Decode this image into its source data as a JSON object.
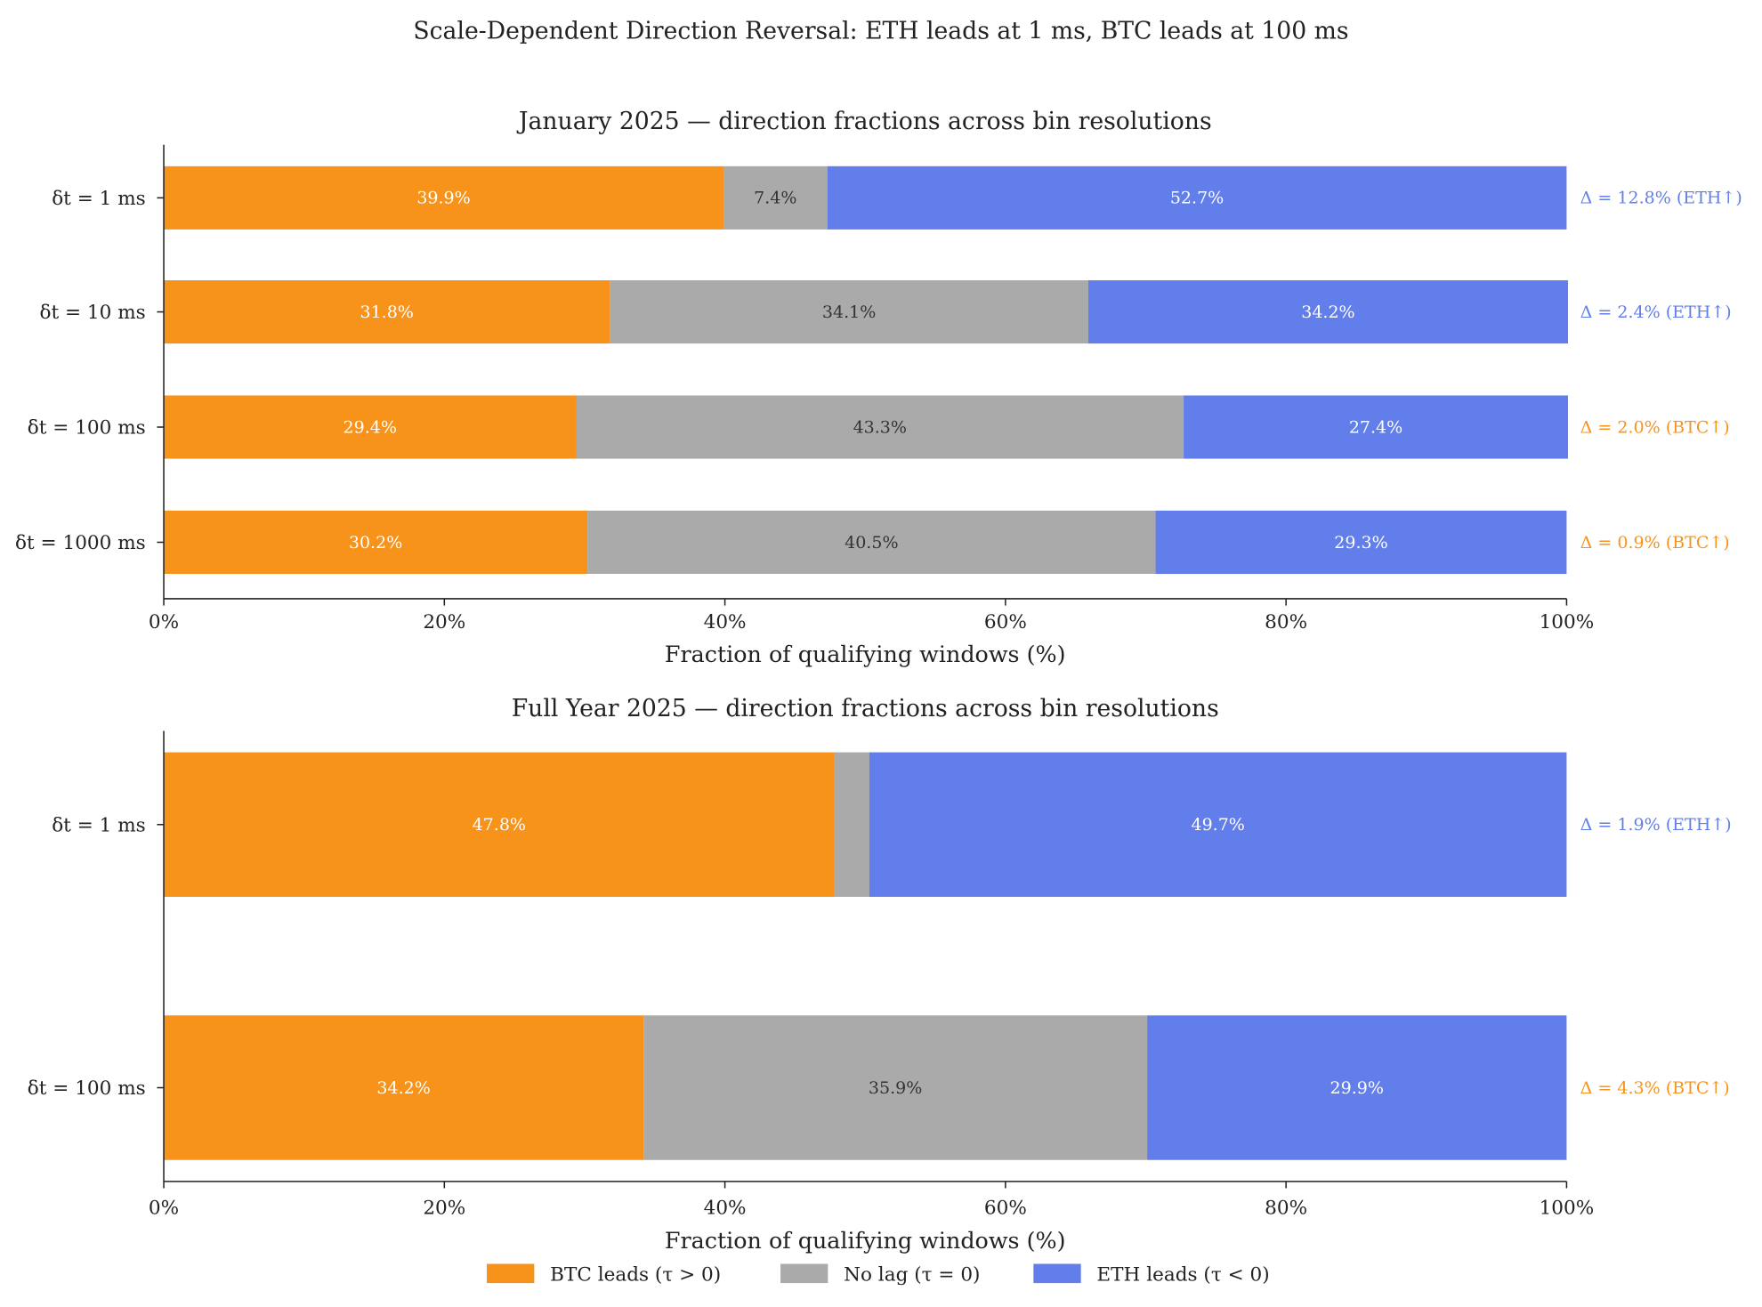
{
  "title": "Scale-Dependent Direction Reversal: ETH leads at 1 ms, BTC leads at 100 ms",
  "colors": {
    "btc": "#F7931A",
    "nolag": "#AAAAAA",
    "eth": "#627EEA",
    "text": "#222222"
  },
  "legend": {
    "placement": "bottom-center",
    "items": [
      {
        "label": "BTC leads (τ > 0)",
        "color": "#F7931A"
      },
      {
        "label": "No lag (τ = 0)",
        "color": "#AAAAAA"
      },
      {
        "label": "ETH leads (τ < 0)",
        "color": "#627EEA"
      }
    ]
  },
  "chart_data": [
    {
      "type": "bar",
      "orientation": "horizontal-stacked",
      "title": "January 2025 — direction fractions across bin resolutions",
      "xlabel": "Fraction of qualifying windows (%)",
      "xlim": [
        0,
        100
      ],
      "xticks": [
        "0%",
        "20%",
        "40%",
        "60%",
        "80%",
        "100%"
      ],
      "categories": [
        "δt = 1 ms",
        "δt = 10 ms",
        "δt = 100 ms",
        "δt = 1000 ms"
      ],
      "series": [
        {
          "name": "BTC leads (τ > 0)",
          "values": [
            39.9,
            31.8,
            29.4,
            30.2
          ],
          "labels": [
            "39.9%",
            "31.8%",
            "29.4%",
            "30.2%"
          ]
        },
        {
          "name": "No lag (τ = 0)",
          "values": [
            7.4,
            34.1,
            43.3,
            40.5
          ],
          "labels": [
            "7.4%",
            "34.1%",
            "43.3%",
            "40.5%"
          ]
        },
        {
          "name": "ETH leads (τ < 0)",
          "values": [
            52.7,
            34.2,
            27.4,
            29.3
          ],
          "labels": [
            "52.7%",
            "34.2%",
            "27.4%",
            "29.3%"
          ]
        }
      ],
      "annotations": [
        {
          "text": "Δ = 12.8% (ETH↑)",
          "leader": "eth"
        },
        {
          "text": "Δ = 2.4% (ETH↑)",
          "leader": "eth"
        },
        {
          "text": "Δ = 2.0% (BTC↑)",
          "leader": "btc"
        },
        {
          "text": "Δ = 0.9% (BTC↑)",
          "leader": "btc"
        }
      ]
    },
    {
      "type": "bar",
      "orientation": "horizontal-stacked",
      "title": "Full Year 2025 — direction fractions across bin resolutions",
      "xlabel": "Fraction of qualifying windows (%)",
      "xlim": [
        0,
        100
      ],
      "xticks": [
        "0%",
        "20%",
        "40%",
        "60%",
        "80%",
        "100%"
      ],
      "categories": [
        "δt = 1 ms",
        "δt = 100 ms"
      ],
      "series": [
        {
          "name": "BTC leads (τ > 0)",
          "values": [
            47.8,
            34.2
          ],
          "labels": [
            "47.8%",
            "34.2%"
          ]
        },
        {
          "name": "No lag (τ = 0)",
          "values": [
            2.5,
            35.9
          ],
          "labels": [
            "",
            "35.9%"
          ]
        },
        {
          "name": "ETH leads (τ < 0)",
          "values": [
            49.7,
            29.9
          ],
          "labels": [
            "49.7%",
            "29.9%"
          ]
        }
      ],
      "annotations": [
        {
          "text": "Δ = 1.9% (ETH↑)",
          "leader": "eth"
        },
        {
          "text": "Δ = 4.3% (BTC↑)",
          "leader": "btc"
        }
      ]
    }
  ]
}
